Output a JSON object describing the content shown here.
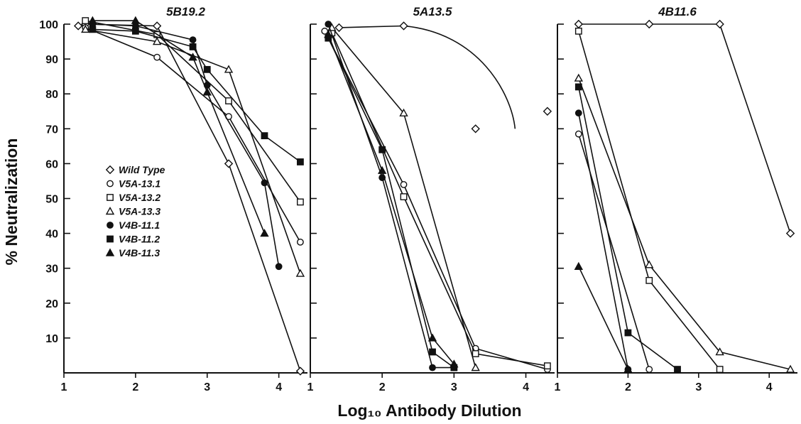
{
  "ylabel": "% Neutralization",
  "xlabel": "Log₁₀ Antibody Dilution",
  "legend": [
    {
      "name": "Wild Type",
      "marker": "diamond-open"
    },
    {
      "name": "V5A-13.1",
      "marker": "circle-open"
    },
    {
      "name": "V5A-13.2",
      "marker": "square-open"
    },
    {
      "name": "V5A-13.3",
      "marker": "triangle-open"
    },
    {
      "name": "V4B-11.1",
      "marker": "circle-filled"
    },
    {
      "name": "V4B-11.2",
      "marker": "square-filled"
    },
    {
      "name": "V4B-11.3",
      "marker": "triangle-filled"
    }
  ],
  "chart_data": [
    {
      "type": "line",
      "title": "5B19.2",
      "xlim": [
        1,
        4.4
      ],
      "ylim": [
        0,
        100
      ],
      "xticks": [
        1,
        2,
        3,
        4
      ],
      "yticks": [
        10,
        20,
        30,
        40,
        50,
        60,
        70,
        80,
        90,
        100
      ],
      "show_yticklabels": true,
      "series": [
        {
          "name": "Wild Type",
          "marker": "diamond-open",
          "points": [
            [
              1.2,
              99.5
            ],
            [
              1.3,
              100
            ],
            [
              2.3,
              99.5
            ],
            [
              3.3,
              60
            ],
            [
              4.3,
              0.5
            ]
          ]
        },
        {
          "name": "V5A-13.1",
          "marker": "circle-open",
          "points": [
            [
              1.3,
              99
            ],
            [
              2.3,
              90.5
            ],
            [
              3.3,
              73.5
            ],
            [
              4.3,
              37.5
            ]
          ]
        },
        {
          "name": "V5A-13.2",
          "marker": "square-open",
          "points": [
            [
              1.3,
              101
            ],
            [
              2.3,
              97
            ],
            [
              3.3,
              78
            ],
            [
              4.3,
              49
            ]
          ]
        },
        {
          "name": "V5A-13.3",
          "marker": "triangle-open",
          "points": [
            [
              1.3,
              98.5
            ],
            [
              2.3,
              95
            ],
            [
              3.3,
              87
            ],
            [
              4.3,
              28.5
            ]
          ]
        },
        {
          "name": "V4B-11.1",
          "marker": "circle-filled",
          "points": [
            [
              1.4,
              100
            ],
            [
              2.0,
              99.5
            ],
            [
              2.8,
              95.5
            ],
            [
              3.0,
              82.5
            ],
            [
              3.8,
              54.5
            ],
            [
              4.0,
              30.5
            ]
          ]
        },
        {
          "name": "V4B-11.2",
          "marker": "square-filled",
          "points": [
            [
              1.4,
              98.5
            ],
            [
              2.0,
              98
            ],
            [
              2.8,
              93.5
            ],
            [
              3.0,
              87
            ],
            [
              3.8,
              68
            ],
            [
              4.3,
              60.5
            ]
          ]
        },
        {
          "name": "V4B-11.3",
          "marker": "triangle-filled",
          "points": [
            [
              1.4,
              101
            ],
            [
              2.0,
              101
            ],
            [
              2.8,
              90.5
            ],
            [
              3.0,
              80.5
            ],
            [
              3.8,
              40
            ]
          ]
        }
      ]
    },
    {
      "type": "line",
      "title": "5A13.5",
      "xlim": [
        1,
        4.4
      ],
      "ylim": [
        0,
        100
      ],
      "xticks": [
        1,
        2,
        3,
        4
      ],
      "yticks": [
        10,
        20,
        30,
        40,
        50,
        60,
        70,
        80,
        90,
        100
      ],
      "show_yticklabels": false,
      "series": [
        {
          "name": "Wild Type",
          "marker": "diamond-open",
          "points": [
            [
              1.4,
              99
            ],
            [
              2.3,
              99.5
            ]
          ],
          "extra_points": [
            [
              3.3,
              70
            ],
            [
              4.3,
              75
            ]
          ]
        },
        {
          "name": "V5A-13.1",
          "marker": "circle-open",
          "points": [
            [
              1.2,
              98
            ],
            [
              2.3,
              54
            ],
            [
              3.3,
              7
            ],
            [
              4.3,
              1
            ]
          ]
        },
        {
          "name": "V5A-13.2",
          "marker": "square-open",
          "points": [
            [
              1.3,
              97.5
            ],
            [
              2.3,
              50.5
            ],
            [
              3.3,
              5.5
            ],
            [
              4.3,
              2
            ]
          ]
        },
        {
          "name": "V5A-13.3",
          "marker": "triangle-open",
          "points": [
            [
              1.3,
              99
            ],
            [
              2.3,
              74.5
            ],
            [
              3.3,
              1.5
            ]
          ]
        },
        {
          "name": "V4B-11.1",
          "marker": "circle-filled",
          "points": [
            [
              1.25,
              100
            ],
            [
              2.0,
              56
            ],
            [
              2.7,
              1.5
            ],
            [
              3.0,
              1.5
            ]
          ]
        },
        {
          "name": "V4B-11.2",
          "marker": "square-filled",
          "points": [
            [
              1.25,
              96
            ],
            [
              2.0,
              64
            ],
            [
              2.7,
              6
            ],
            [
              3.0,
              1.5
            ]
          ]
        },
        {
          "name": "V4B-11.3",
          "marker": "triangle-filled",
          "points": [
            [
              1.25,
              97
            ],
            [
              2.0,
              58
            ],
            [
              2.7,
              10
            ],
            [
              3.0,
              2.5
            ]
          ]
        }
      ]
    },
    {
      "type": "line",
      "title": "4B11.6",
      "xlim": [
        1,
        4.4
      ],
      "ylim": [
        0,
        100
      ],
      "xticks": [
        1,
        2,
        3,
        4
      ],
      "yticks": [
        10,
        20,
        30,
        40,
        50,
        60,
        70,
        80,
        90,
        100
      ],
      "show_yticklabels": false,
      "series": [
        {
          "name": "Wild Type",
          "marker": "diamond-open",
          "points": [
            [
              1.3,
              100
            ],
            [
              2.3,
              100
            ],
            [
              3.3,
              100
            ],
            [
              4.3,
              40
            ]
          ]
        },
        {
          "name": "V5A-13.1",
          "marker": "circle-open",
          "points": [
            [
              1.3,
              68.5
            ],
            [
              2.3,
              1
            ]
          ]
        },
        {
          "name": "V5A-13.2",
          "marker": "square-open",
          "points": [
            [
              1.3,
              98
            ],
            [
              2.3,
              26.5
            ],
            [
              3.3,
              1
            ]
          ]
        },
        {
          "name": "V5A-13.3",
          "marker": "triangle-open",
          "points": [
            [
              1.3,
              84.5
            ],
            [
              2.3,
              31
            ],
            [
              3.3,
              6
            ],
            [
              4.3,
              1
            ]
          ]
        },
        {
          "name": "V4B-11.1",
          "marker": "circle-filled",
          "points": [
            [
              1.3,
              74.5
            ],
            [
              2.0,
              1
            ]
          ]
        },
        {
          "name": "V4B-11.2",
          "marker": "square-filled",
          "points": [
            [
              1.3,
              82
            ],
            [
              2.0,
              11.5
            ],
            [
              2.7,
              1
            ]
          ]
        },
        {
          "name": "V4B-11.3",
          "marker": "triangle-filled",
          "points": [
            [
              1.3,
              30.5
            ],
            [
              2.0,
              1
            ]
          ]
        }
      ]
    }
  ]
}
